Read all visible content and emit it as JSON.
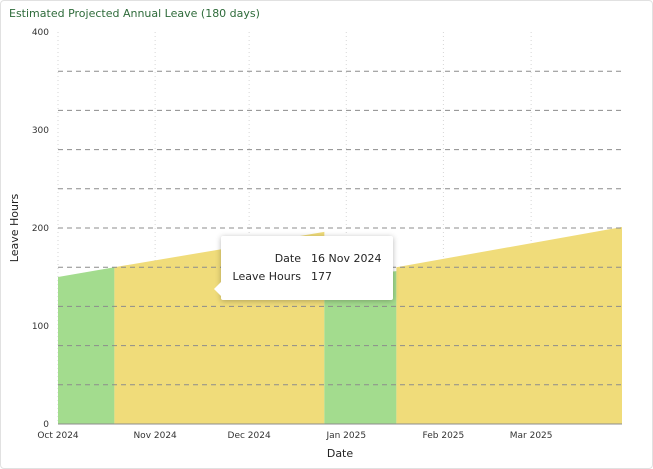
{
  "title": "Estimated Projected Annual Leave (180 days)",
  "chart_data": {
    "type": "area",
    "xlabel": "Date",
    "ylabel": "Leave Hours",
    "ylim": [
      0,
      400
    ],
    "y_ticks": [
      "0",
      "100",
      "200",
      "300",
      "400"
    ],
    "x_ticks": [
      {
        "date": "2024-10-01",
        "label": "Oct 2024"
      },
      {
        "date": "2024-11-01",
        "label": "Nov 2024"
      },
      {
        "date": "2024-12-01",
        "label": "Dec 2024"
      },
      {
        "date": "2025-01-01",
        "label": "Jan 2025"
      },
      {
        "date": "2025-02-01",
        "label": "Feb 2025"
      },
      {
        "date": "2025-03-01",
        "label": "Mar 2025"
      }
    ],
    "x_range": [
      "2024-10-01",
      "2025-03-30"
    ],
    "grid": {
      "horizontal": "dashed",
      "vertical": "dotted"
    },
    "segments": [
      {
        "start": "2024-10-01",
        "end": "2024-10-19",
        "color": "#a3dc8e",
        "points": [
          [
            "2024-10-01",
            150
          ],
          [
            "2024-10-19",
            160
          ]
        ]
      },
      {
        "start": "2024-10-19",
        "end": "2024-12-25",
        "color": "#f0dc7a",
        "points": [
          [
            "2024-10-19",
            160
          ],
          [
            "2024-12-25",
            196
          ]
        ]
      },
      {
        "start": "2024-12-25",
        "end": "2025-01-17",
        "color": "#a3dc8e",
        "points": [
          [
            "2024-12-25",
            148
          ],
          [
            "2025-01-17",
            156
          ]
        ]
      },
      {
        "start": "2025-01-17",
        "end": "2025-03-30",
        "color": "#f0dc7a",
        "points": [
          [
            "2025-01-17",
            160
          ],
          [
            "2025-03-30",
            201
          ]
        ]
      }
    ]
  },
  "tooltip": {
    "rows": [
      {
        "label": "Date",
        "value": "16 Nov 2024"
      },
      {
        "label": "Leave Hours",
        "value": "177"
      }
    ]
  }
}
